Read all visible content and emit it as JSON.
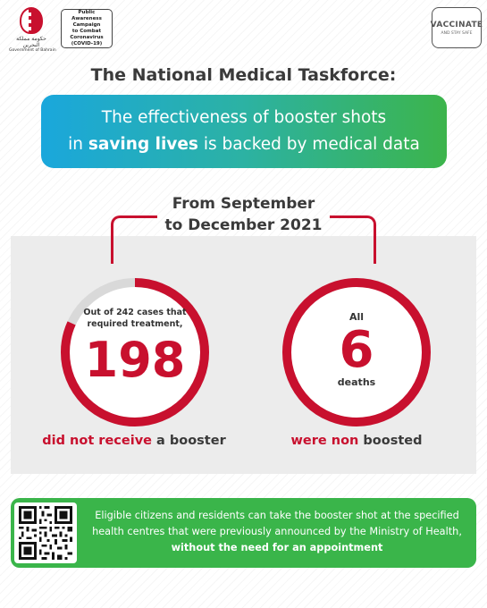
{
  "header": {
    "gov_arabic": "حكومة مملكة البحرين",
    "gov_caption": "Government of Bahrain",
    "campaign_lines": [
      "Public Awareness",
      "Campaign",
      "to Combat",
      "Coronavirus",
      "(COVID-19)"
    ],
    "vaccinate_title": "VACCINATE",
    "vaccinate_sub": "AND STAY SAFE"
  },
  "title": "The National Medical Taskforce:",
  "banner": {
    "line1": "The effectiveness of booster shots",
    "line2_prefix": "in ",
    "line2_bold": "saving lives",
    "line2_suffix": " is backed by medical data"
  },
  "period": {
    "line1": "From September",
    "line2": "to December 2021"
  },
  "stats": {
    "left": {
      "intro_line1": "Out of 242 cases that",
      "intro_line2": "required treatment,",
      "value": "198",
      "total": 242,
      "count": 198,
      "caption_red": "did not receive",
      "caption_rest": " a booster"
    },
    "right": {
      "top": "All",
      "value": "6",
      "bottom": "deaths",
      "caption_rest": "were ",
      "caption_red": "non",
      "caption_end": " boosted"
    }
  },
  "footer": {
    "text_normal": "Eligible citizens and residents can take the booster shot at the specified health centres that were previously announced by the Ministry of Health, ",
    "text_bold": "without the need for an appointment"
  },
  "colors": {
    "accent_red": "#c8102e",
    "banner_start": "#1aa7dc",
    "banner_end": "#3cb44b",
    "footer_green": "#3ab54a"
  },
  "icons": [
    "bahrain-emblem-icon",
    "qr-code-icon"
  ]
}
